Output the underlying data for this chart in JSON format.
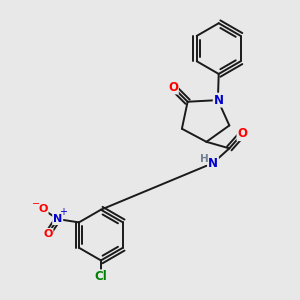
{
  "background_color": "#e8e8e8",
  "bond_color": "#1a1a1a",
  "atom_colors": {
    "O": "#ff0000",
    "N": "#0000cd",
    "H": "#708090",
    "Cl": "#008000",
    "C": "#1a1a1a"
  },
  "figsize": [
    3.0,
    3.0
  ],
  "dpi": 100
}
